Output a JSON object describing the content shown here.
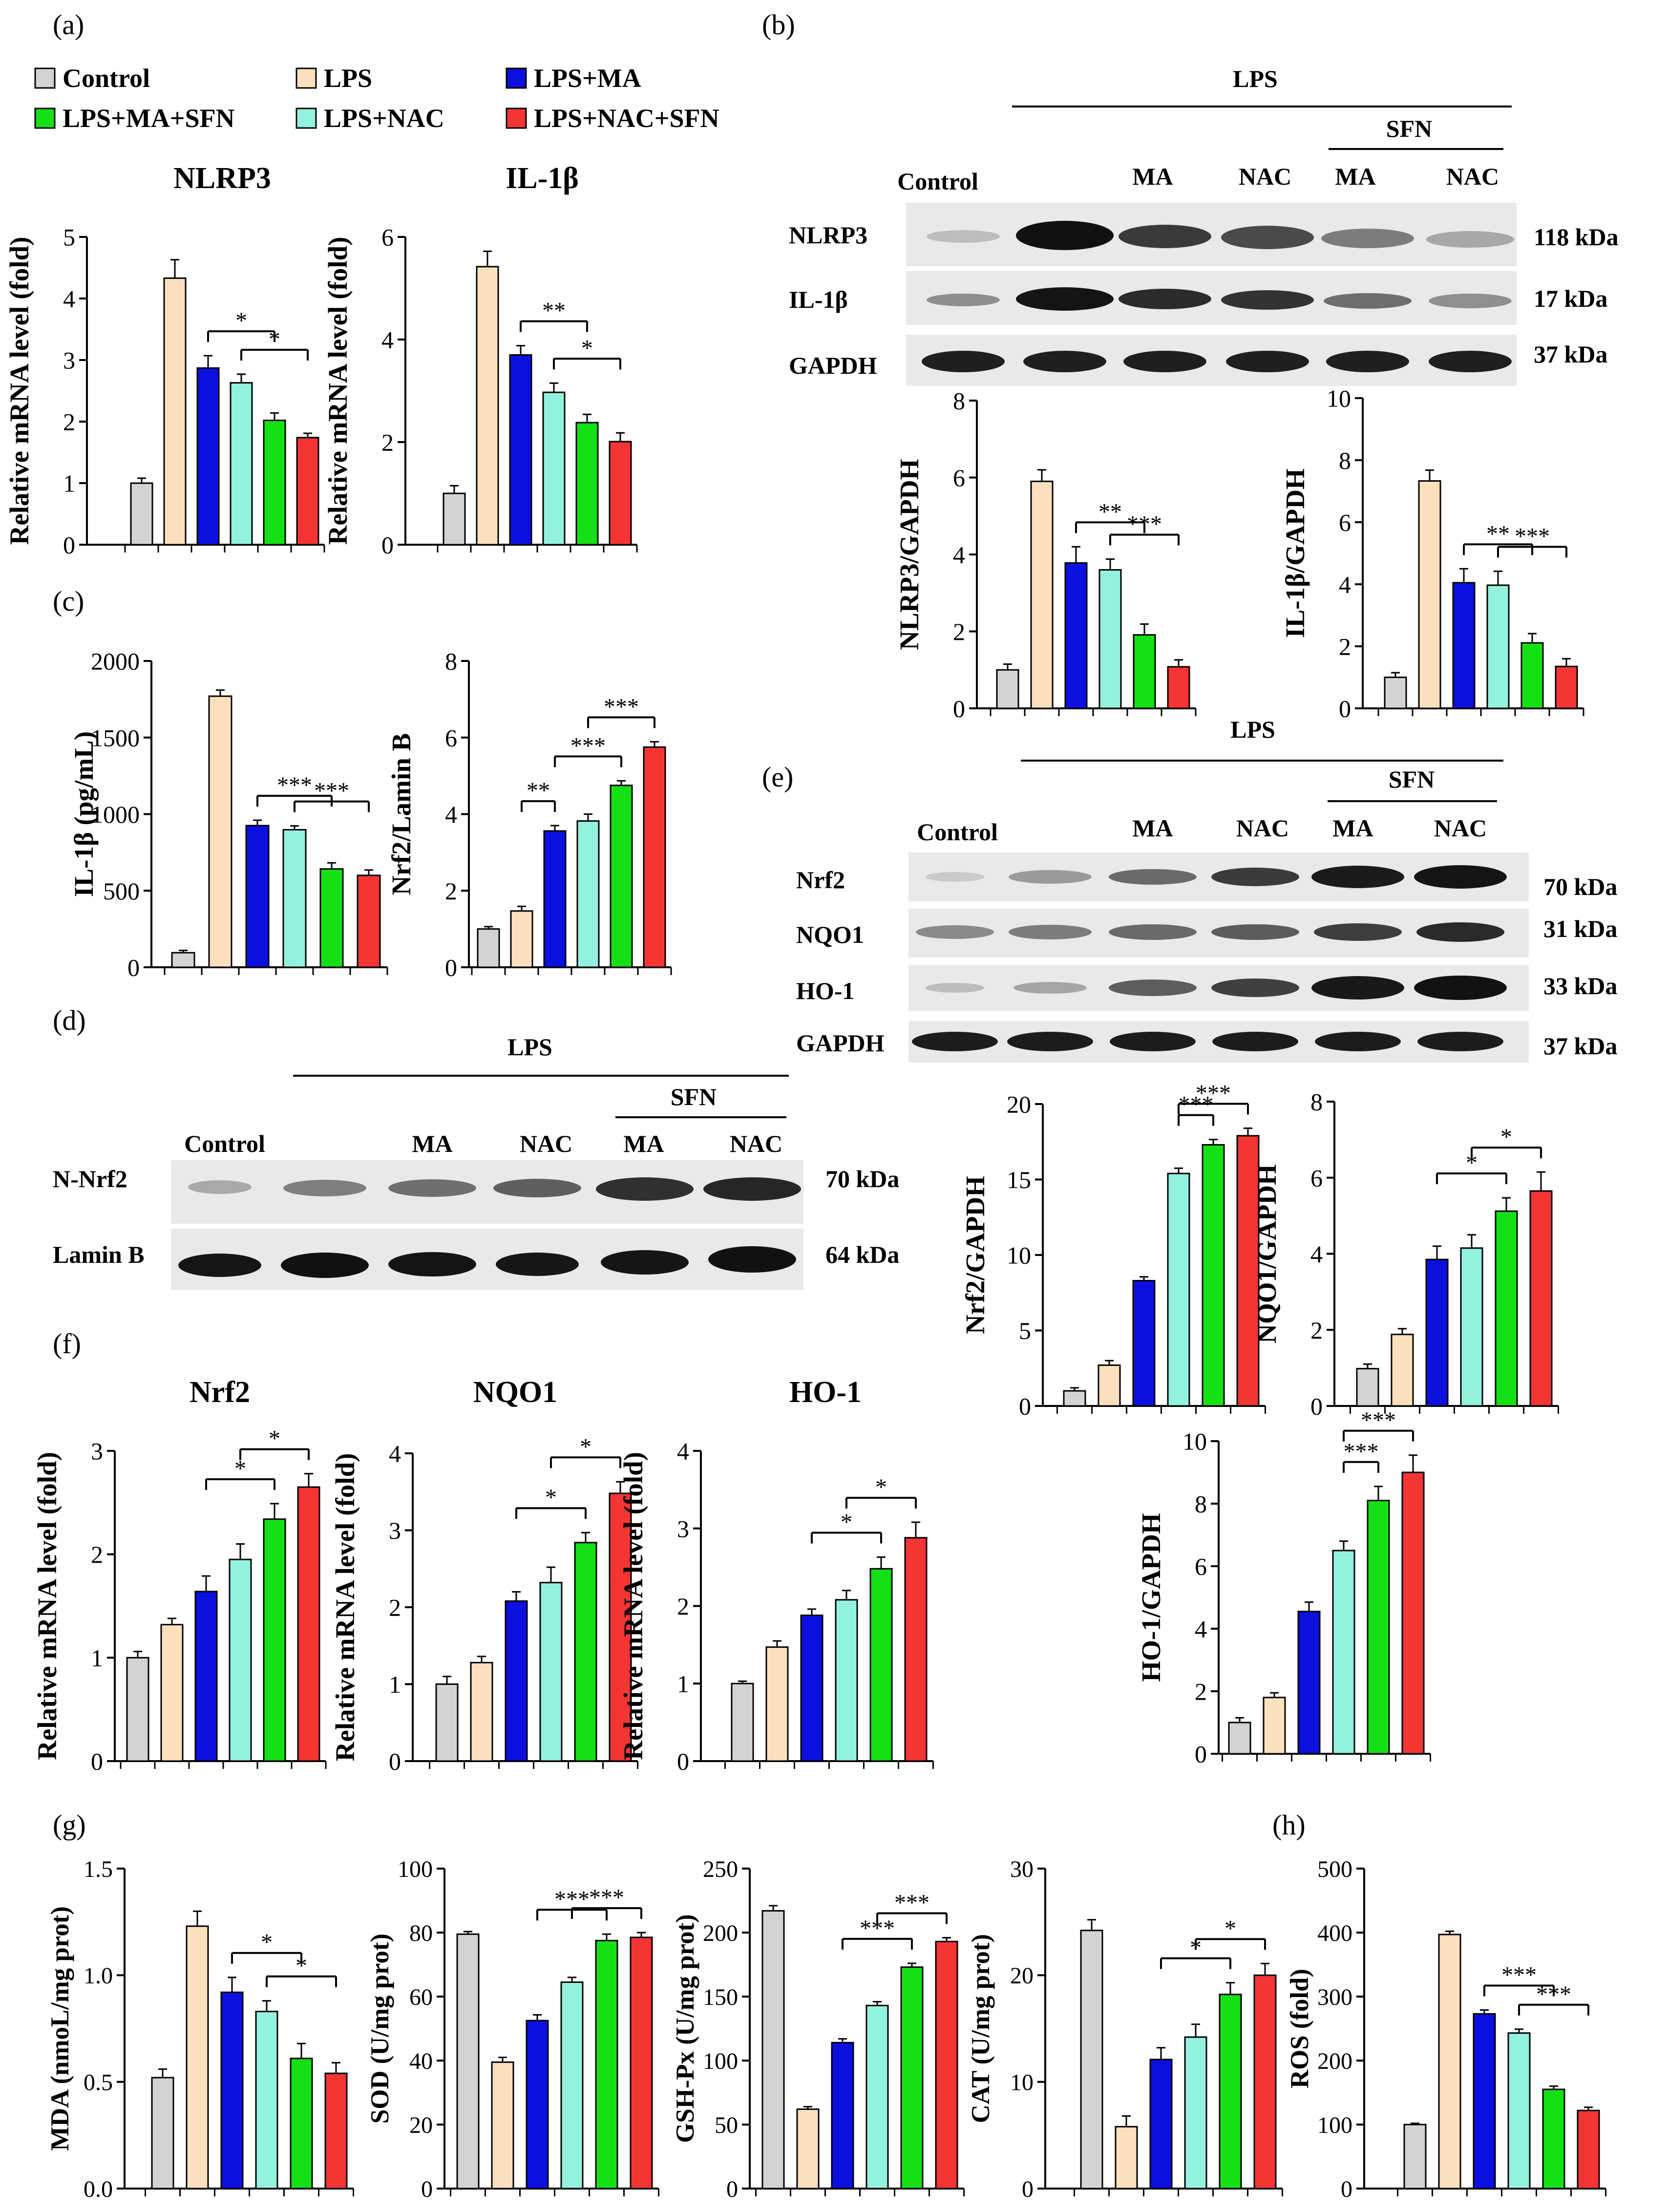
{
  "colors": {
    "control": "#d3d3d3",
    "lps": "#fce0bd",
    "lps_ma": "#0b10e0",
    "lps_ma_sfn": "#15e015",
    "lps_nac": "#93f1df",
    "lps_nac_sfn": "#f53434"
  },
  "panel_labels": {
    "a": "(a)",
    "b": "(b)",
    "c": "(c)",
    "d": "(d)",
    "e": "(e)",
    "f": "(f)",
    "g": "(g)",
    "h": "(h)"
  },
  "legend": [
    {
      "label": "Control",
      "color": "#d3d3d3"
    },
    {
      "label": "LPS",
      "color": "#fce0bd"
    },
    {
      "label": "LPS+MA",
      "color": "#0b10e0"
    },
    {
      "label": "LPS+MA+SFN",
      "color": "#15e015"
    },
    {
      "label": "LPS+NAC",
      "color": "#93f1df"
    },
    {
      "label": "LPS+NAC+SFN",
      "color": "#f53434"
    }
  ],
  "blots": {
    "b": {
      "group_label": "LPS",
      "sub_group_label": "SFN",
      "control_label": "Control",
      "lane_labels": [
        "MA",
        "NAC",
        "MA",
        "NAC"
      ],
      "rows": [
        {
          "protein": "NLRP3",
          "size": "118 kDa"
        },
        {
          "protein": "IL-1β",
          "size": "17 kDa"
        },
        {
          "protein": "GAPDH",
          "size": "37 kDa"
        }
      ]
    },
    "e": {
      "group_label": "LPS",
      "sub_group_label": "SFN",
      "control_label": "Control",
      "lane_labels": [
        "MA",
        "NAC",
        "MA",
        "NAC"
      ],
      "rows": [
        {
          "protein": "Nrf2",
          "size": "70 kDa"
        },
        {
          "protein": "NQO1",
          "size": "31 kDa"
        },
        {
          "protein": "HO-1",
          "size": "33 kDa"
        },
        {
          "protein": "GAPDH",
          "size": "37 kDa"
        }
      ]
    },
    "d": {
      "group_label": "LPS",
      "sub_group_label": "SFN",
      "control_label": "Control",
      "lane_labels": [
        "MA",
        "NAC",
        "MA",
        "NAC"
      ],
      "rows": [
        {
          "protein": "N-Nrf2",
          "size": "70 kDa"
        },
        {
          "protein": "Lamin B",
          "size": "64 kDa"
        }
      ]
    }
  },
  "chart_data": [
    {
      "id": "a1",
      "type": "bar",
      "title": "NLRP3",
      "ylabel": "Relative mRNA level (fold)",
      "ylim": [
        0,
        5
      ],
      "yticks": [
        0,
        1,
        2,
        3,
        4,
        5
      ],
      "values": [
        1.0,
        4.33,
        2.87,
        2.63,
        2.02,
        1.74
      ],
      "errors": [
        0.08,
        0.3,
        0.2,
        0.14,
        0.12,
        0.07
      ],
      "sig": [
        {
          "from": 2,
          "to": 4,
          "label": "*"
        },
        {
          "from": 3,
          "to": 5,
          "label": "*"
        }
      ]
    },
    {
      "id": "a2",
      "type": "bar",
      "title": "IL-1β",
      "ylabel": "Relative mRNA level (fold)",
      "ylim": [
        0,
        6
      ],
      "yticks": [
        0,
        2,
        4,
        6
      ],
      "values": [
        1.0,
        5.42,
        3.7,
        2.97,
        2.38,
        2.01
      ],
      "errors": [
        0.15,
        0.3,
        0.18,
        0.18,
        0.16,
        0.17
      ],
      "sig": [
        {
          "from": 2,
          "to": 4,
          "label": "**"
        },
        {
          "from": 3,
          "to": 5,
          "label": "*"
        }
      ]
    },
    {
      "id": "b1",
      "type": "bar",
      "title": "",
      "ylabel": "NLRP3/GAPDH",
      "ylim": [
        0,
        8
      ],
      "yticks": [
        0,
        2,
        4,
        6,
        8
      ],
      "values": [
        1.0,
        5.9,
        3.78,
        3.6,
        1.91,
        1.08
      ],
      "errors": [
        0.15,
        0.3,
        0.42,
        0.28,
        0.28,
        0.18
      ],
      "sig": [
        {
          "from": 2,
          "to": 4,
          "label": "**"
        },
        {
          "from": 3,
          "to": 5,
          "label": "***"
        }
      ]
    },
    {
      "id": "b2",
      "type": "bar",
      "title": "",
      "ylabel": "IL-1β/GAPDH",
      "ylim": [
        0,
        10
      ],
      "yticks": [
        0,
        2,
        4,
        6,
        8,
        10
      ],
      "values": [
        1.0,
        7.33,
        4.05,
        3.97,
        2.11,
        1.35
      ],
      "errors": [
        0.15,
        0.35,
        0.45,
        0.45,
        0.3,
        0.25
      ],
      "sig": [
        {
          "from": 2,
          "to": 4,
          "label": "**"
        },
        {
          "from": 3,
          "to": 5,
          "label": "***"
        }
      ]
    },
    {
      "id": "c1",
      "type": "bar",
      "title": "",
      "ylabel": "IL-1β (pg/mL)",
      "ylim": [
        0,
        2000
      ],
      "yticks": [
        0,
        500,
        1000,
        1500,
        2000
      ],
      "values": [
        95,
        1770,
        925,
        898,
        642,
        600
      ],
      "errors": [
        15,
        40,
        35,
        25,
        40,
        35
      ],
      "sig": [
        {
          "from": 2,
          "to": 4,
          "label": "***"
        },
        {
          "from": 3,
          "to": 5,
          "label": "***"
        }
      ]
    },
    {
      "id": "c2",
      "type": "bar",
      "title": "",
      "ylabel": "Nrf2/Lamin B",
      "ylim": [
        0,
        8
      ],
      "yticks": [
        0,
        2,
        4,
        6,
        8
      ],
      "values": [
        1.0,
        1.47,
        3.56,
        3.82,
        4.75,
        5.75
      ],
      "errors": [
        0.06,
        0.12,
        0.14,
        0.18,
        0.12,
        0.14
      ],
      "sig": [
        {
          "from": 1,
          "to": 2,
          "label": "**"
        },
        {
          "from": 2,
          "to": 4,
          "label": "***"
        },
        {
          "from": 3,
          "to": 5,
          "label": "***"
        }
      ]
    },
    {
      "id": "e1",
      "type": "bar",
      "title": "",
      "ylabel": "Nrf2/GAPDH",
      "ylim": [
        0,
        20
      ],
      "yticks": [
        0,
        5,
        10,
        15,
        20
      ],
      "values": [
        1.0,
        2.7,
        8.3,
        15.4,
        17.3,
        17.9
      ],
      "errors": [
        0.2,
        0.3,
        0.25,
        0.35,
        0.35,
        0.5
      ],
      "sig": [
        {
          "from": 3,
          "to": 4,
          "label": "***"
        },
        {
          "from": 3,
          "to": 5,
          "label": "***"
        }
      ]
    },
    {
      "id": "e2",
      "type": "bar",
      "title": "",
      "ylabel": "NQO1/GAPDH",
      "ylim": [
        0,
        8
      ],
      "yticks": [
        0,
        2,
        4,
        6,
        8
      ],
      "values": [
        0.98,
        1.88,
        3.85,
        4.15,
        5.12,
        5.65
      ],
      "errors": [
        0.12,
        0.15,
        0.35,
        0.35,
        0.35,
        0.5
      ],
      "sig": [
        {
          "from": 2,
          "to": 4,
          "label": "*"
        },
        {
          "from": 3,
          "to": 5,
          "label": "*"
        }
      ]
    },
    {
      "id": "e3",
      "type": "bar",
      "title": "",
      "ylabel": "HO-1/GAPDH",
      "ylim": [
        0,
        10
      ],
      "yticks": [
        0,
        2,
        4,
        6,
        8,
        10
      ],
      "values": [
        1.0,
        1.8,
        4.55,
        6.5,
        8.1,
        9.0
      ],
      "errors": [
        0.15,
        0.15,
        0.3,
        0.3,
        0.45,
        0.55
      ],
      "sig": [
        {
          "from": 3,
          "to": 4,
          "label": "***"
        },
        {
          "from": 3,
          "to": 5,
          "label": "***"
        }
      ]
    },
    {
      "id": "f1",
      "type": "bar",
      "title": "Nrf2",
      "ylabel": "Relative mRNA level (fold)",
      "ylim": [
        0,
        3
      ],
      "yticks": [
        0,
        1,
        2,
        3
      ],
      "values": [
        1.0,
        1.32,
        1.64,
        1.95,
        2.34,
        2.65
      ],
      "errors": [
        0.06,
        0.06,
        0.15,
        0.15,
        0.15,
        0.13
      ],
      "sig": [
        {
          "from": 2,
          "to": 4,
          "label": "*"
        },
        {
          "from": 3,
          "to": 5,
          "label": "*"
        }
      ]
    },
    {
      "id": "f2",
      "type": "bar",
      "title": "NQO1",
      "ylabel": "Relative mRNA level (fold)",
      "ylim": [
        0,
        4
      ],
      "yticks": [
        0,
        1,
        2,
        3,
        4
      ],
      "values": [
        1.0,
        1.28,
        2.08,
        2.32,
        2.84,
        3.48
      ],
      "errors": [
        0.1,
        0.08,
        0.12,
        0.2,
        0.13,
        0.15
      ],
      "sig": [
        {
          "from": 2,
          "to": 4,
          "label": "*"
        },
        {
          "from": 3,
          "to": 5,
          "label": "*"
        }
      ]
    },
    {
      "id": "f3",
      "type": "bar",
      "title": "HO-1",
      "ylabel": "Relative mRNA level (fold)",
      "ylim": [
        0,
        4
      ],
      "yticks": [
        0,
        1,
        2,
        3,
        4
      ],
      "values": [
        1.0,
        1.47,
        1.88,
        2.08,
        2.48,
        2.88
      ],
      "errors": [
        0.03,
        0.08,
        0.08,
        0.12,
        0.15,
        0.2
      ],
      "sig": [
        {
          "from": 2,
          "to": 4,
          "label": "*"
        },
        {
          "from": 3,
          "to": 5,
          "label": "*"
        }
      ]
    },
    {
      "id": "g1",
      "type": "bar",
      "title": "",
      "ylabel": "MDA (nmoL/mg prot)",
      "ylim": [
        0,
        1.5
      ],
      "yticks": [
        0.0,
        0.5,
        1.0,
        1.5
      ],
      "values": [
        0.52,
        1.23,
        0.92,
        0.83,
        0.61,
        0.54
      ],
      "errors": [
        0.04,
        0.07,
        0.07,
        0.05,
        0.07,
        0.05
      ],
      "sig": [
        {
          "from": 2,
          "to": 4,
          "label": "*"
        },
        {
          "from": 3,
          "to": 5,
          "label": "*"
        }
      ]
    },
    {
      "id": "g2",
      "type": "bar",
      "title": "",
      "ylabel": "SOD (U/mg prot)",
      "ylim": [
        0,
        100
      ],
      "yticks": [
        0,
        20,
        40,
        60,
        80,
        100
      ],
      "values": [
        79.5,
        39.5,
        52.5,
        64.5,
        77.5,
        78.5
      ],
      "errors": [
        0.8,
        1.5,
        1.8,
        1.5,
        2.0,
        1.5
      ],
      "sig": [
        {
          "from": 2,
          "to": 4,
          "label": "***"
        },
        {
          "from": 3,
          "to": 5,
          "label": "***"
        }
      ]
    },
    {
      "id": "g3",
      "type": "bar",
      "title": "",
      "ylabel": "GSH-Px (U/mg prot)",
      "ylim": [
        0,
        250
      ],
      "yticks": [
        0,
        50,
        100,
        150,
        200,
        250
      ],
      "values": [
        217,
        62,
        114,
        143,
        173,
        193
      ],
      "errors": [
        4,
        2,
        3,
        3,
        3,
        3
      ],
      "sig": [
        {
          "from": 2,
          "to": 4,
          "label": "***"
        },
        {
          "from": 3,
          "to": 5,
          "label": "***"
        }
      ]
    },
    {
      "id": "g4",
      "type": "bar",
      "title": "",
      "ylabel": "CAT (U/mg prot)",
      "ylim": [
        0,
        30
      ],
      "yticks": [
        0,
        10,
        20,
        30
      ],
      "values": [
        24.2,
        5.8,
        12.1,
        14.2,
        18.2,
        20.0
      ],
      "errors": [
        1.0,
        1.0,
        1.1,
        1.2,
        1.1,
        1.1
      ],
      "sig": [
        {
          "from": 2,
          "to": 4,
          "label": "*"
        },
        {
          "from": 3,
          "to": 5,
          "label": "*"
        }
      ]
    },
    {
      "id": "h1",
      "type": "bar",
      "title": "",
      "ylabel": "ROS (fold)",
      "ylim": [
        0,
        500
      ],
      "yticks": [
        0,
        100,
        200,
        300,
        400,
        500
      ],
      "values": [
        100,
        397,
        273,
        243,
        155,
        122
      ],
      "errors": [
        2,
        5,
        6,
        6,
        5,
        5
      ],
      "sig": [
        {
          "from": 2,
          "to": 4,
          "label": "***"
        },
        {
          "from": 3,
          "to": 5,
          "label": "***"
        }
      ]
    }
  ]
}
